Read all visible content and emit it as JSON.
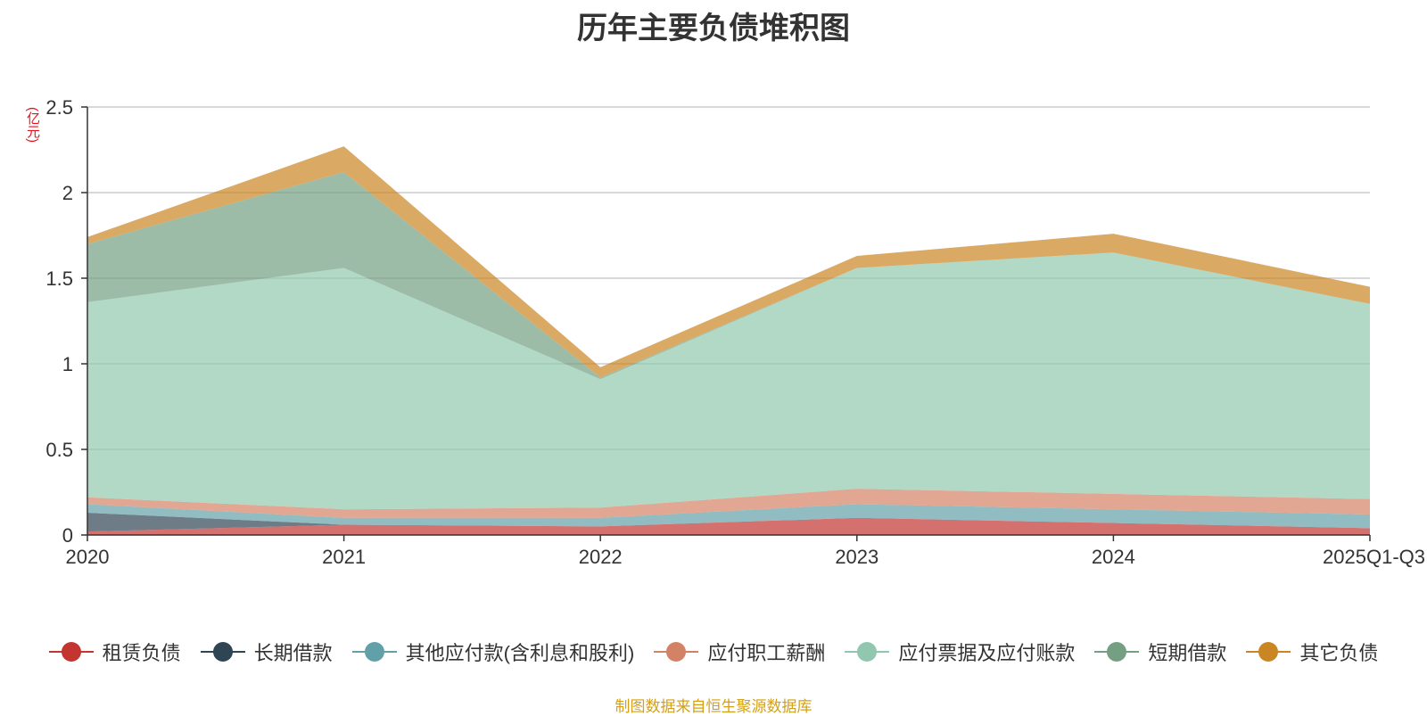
{
  "chart_data": {
    "type": "area",
    "stacked": true,
    "title": "历年主要负债堆积图",
    "ylabel": "(亿元)",
    "xlabel": "",
    "ylim": [
      0,
      2.5
    ],
    "yticks": [
      0,
      0.5,
      1,
      1.5,
      2,
      2.5
    ],
    "ytick_labels": [
      "0",
      "0.5",
      "1",
      "1.5",
      "2",
      "2.5"
    ],
    "categories": [
      "2020",
      "2021",
      "2022",
      "2023",
      "2024",
      "2025Q1-Q3"
    ],
    "grid": true,
    "legend_position": "bottom",
    "series": [
      {
        "name": "租赁负债",
        "color": "#c23531",
        "values": [
          0.02,
          0.06,
          0.05,
          0.1,
          0.07,
          0.04
        ]
      },
      {
        "name": "长期借款",
        "color": "#2f4554",
        "values": [
          0.11,
          0.0,
          0.0,
          0.0,
          0.0,
          0.0
        ]
      },
      {
        "name": "其他应付款(含利息和股利)",
        "color": "#61a0a8",
        "values": [
          0.05,
          0.04,
          0.05,
          0.08,
          0.08,
          0.08
        ]
      },
      {
        "name": "应付职工薪酬",
        "color": "#d48265",
        "values": [
          0.04,
          0.05,
          0.06,
          0.09,
          0.09,
          0.09
        ]
      },
      {
        "name": "应付票据及应付账款",
        "color": "#91c7ae",
        "values": [
          1.14,
          1.41,
          0.75,
          1.29,
          1.41,
          1.14
        ]
      },
      {
        "name": "短期借款",
        "color": "#749f83",
        "values": [
          0.34,
          0.56,
          0.01,
          0.0,
          0.0,
          0.0
        ]
      },
      {
        "name": "其它负债",
        "color": "#ca8622",
        "values": [
          0.04,
          0.15,
          0.06,
          0.07,
          0.11,
          0.1
        ]
      }
    ]
  },
  "footer": {
    "source": "制图数据来自恒生聚源数据库"
  }
}
